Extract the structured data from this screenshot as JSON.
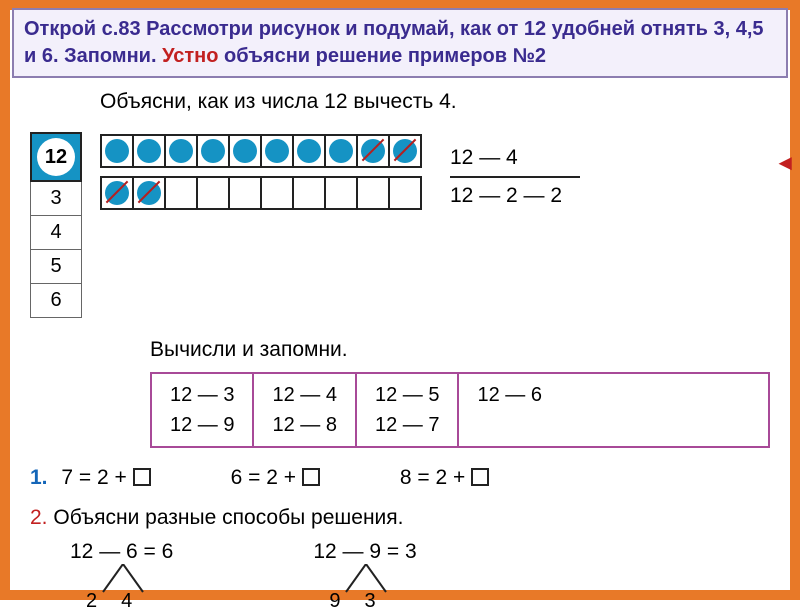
{
  "colors": {
    "outer_border": "#e87928",
    "instruction_border": "#8c7db0",
    "instruction_bg": "#f3f0fb",
    "instruction_text": "#3a2b8f",
    "instruction_red": "#c22020",
    "dot_fill": "#1593c4",
    "num_head_bg": "#1593c4",
    "calc_border": "#a84a98",
    "ex1_color": "#1466b8",
    "ex2_color": "#c22020",
    "red_marker": "#c22020"
  },
  "instruction": {
    "part1": "Открой с.83  Рассмотри рисунок и подумай, как от 12 удобней отнять 3, 4,5 и 6. Запомни. ",
    "red": "Устно",
    "part2": " объясни решение примеров №2"
  },
  "title1": "Объясни, как из числа 12 вычесть 4.",
  "left_column": {
    "head": "12",
    "cells": [
      "3",
      "4",
      "5",
      "6"
    ]
  },
  "dots": {
    "row1_count": 10,
    "row1_crossed_from": 8,
    "row2_count": 10,
    "row2_filled": 2,
    "row2_crossed": true
  },
  "equation": {
    "top": "12 — 4",
    "bottom": "12 — 2 — 2"
  },
  "red_arrow": "◄",
  "title2": "Вычисли и запомни.",
  "calc": {
    "cols": [
      [
        "12 — 3",
        "12 — 9"
      ],
      [
        "12 — 4",
        "12 — 8"
      ],
      [
        "12 — 5",
        "12 — 7"
      ],
      [
        "12 — 6"
      ]
    ]
  },
  "ex1": {
    "label": "1.",
    "items": [
      "7 = 2 + ",
      "6 = 2 + ",
      "8 = 2 + "
    ]
  },
  "ex2": {
    "label": "2.",
    "title": "Объясни разные способы решения.",
    "trees": [
      {
        "eq": "12 — 6 = 6",
        "l1": "2",
        "l2": "4"
      },
      {
        "eq": "12 — 9 = 3",
        "l1": "9",
        "l2": "3"
      }
    ]
  }
}
